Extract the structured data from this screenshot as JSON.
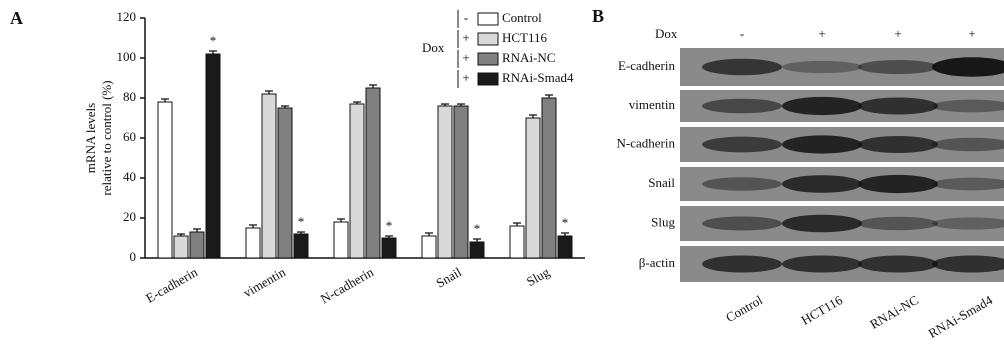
{
  "panel_labels": [
    "A",
    "B"
  ],
  "chart_data": {
    "type": "bar",
    "y_label": [
      "mRNA levels",
      "relative to control (%)"
    ],
    "legend_title": "Dox",
    "categories": [
      "E-cadherin",
      "vimentin",
      "N-cadherin",
      "Snail",
      "Slug"
    ],
    "series": [
      {
        "name": "Control",
        "dox": "-",
        "color": "#ffffff",
        "values": [
          78,
          15,
          18,
          11,
          16
        ],
        "errors": [
          1.5,
          1.5,
          1.5,
          1.5,
          1.5
        ]
      },
      {
        "name": "HCT116",
        "dox": "+",
        "color": "#d9d9d9",
        "values": [
          11,
          82,
          77,
          76,
          70
        ],
        "errors": [
          1,
          1.5,
          1,
          1,
          1.5
        ]
      },
      {
        "name": "RNAi-NC",
        "dox": "+",
        "color": "#808080",
        "values": [
          13,
          75,
          85,
          76,
          80
        ],
        "errors": [
          1.5,
          1,
          1.5,
          1,
          1.5
        ]
      },
      {
        "name": "RNAi-Smad4",
        "dox": "+",
        "color": "#1a1a1a",
        "values": [
          102,
          12,
          10,
          8,
          11
        ],
        "errors": [
          1.5,
          1,
          1,
          1.5,
          1.5
        ],
        "significance": [
          "*",
          "*",
          "*",
          "*",
          "*"
        ]
      }
    ],
    "ylim": [
      0,
      120
    ],
    "yticks": [
      0,
      20,
      40,
      60,
      80,
      100,
      120
    ]
  },
  "blot": {
    "treatment_label": "Dox",
    "treatment": [
      "-",
      "+",
      "+",
      "+"
    ],
    "proteins": [
      "E-cadherin",
      "vimentin",
      "N-cadherin",
      "Snail",
      "Slug",
      "β-actin"
    ],
    "lanes": [
      "Control",
      "HCT116",
      "RNAi-NC",
      "RNAi-Smad4"
    ]
  }
}
